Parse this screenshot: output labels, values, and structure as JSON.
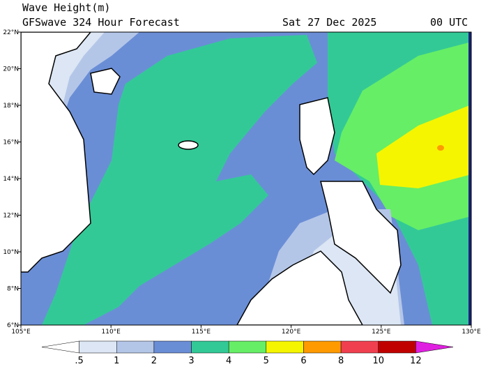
{
  "header": {
    "title": "Wave Height(m)",
    "subtitle": "GFSwave 324 Hour Forecast",
    "date": "Sat 27 Dec 2025",
    "time": "00 UTC"
  },
  "lon_labels": [
    "105°E",
    "110°E",
    "115°E",
    "120°E",
    "125°E",
    "130°E"
  ],
  "lat_labels": [
    "6°N",
    "8°N",
    "10°N",
    "12°N",
    "14°N",
    "16°N",
    "18°N",
    "20°N",
    "22°N"
  ],
  "colorbar": {
    "labels": [
      ".5",
      "1",
      "2",
      "3",
      "4",
      "5",
      "6",
      "8",
      "10",
      "12"
    ],
    "colors": [
      "#ffffff",
      "#dce6f4",
      "#b4c6e8",
      "#6a8ed6",
      "#33c997",
      "#66ee66",
      "#f5f500",
      "#ff9a00",
      "#f04050",
      "#c00000",
      "#e020e0"
    ]
  }
}
